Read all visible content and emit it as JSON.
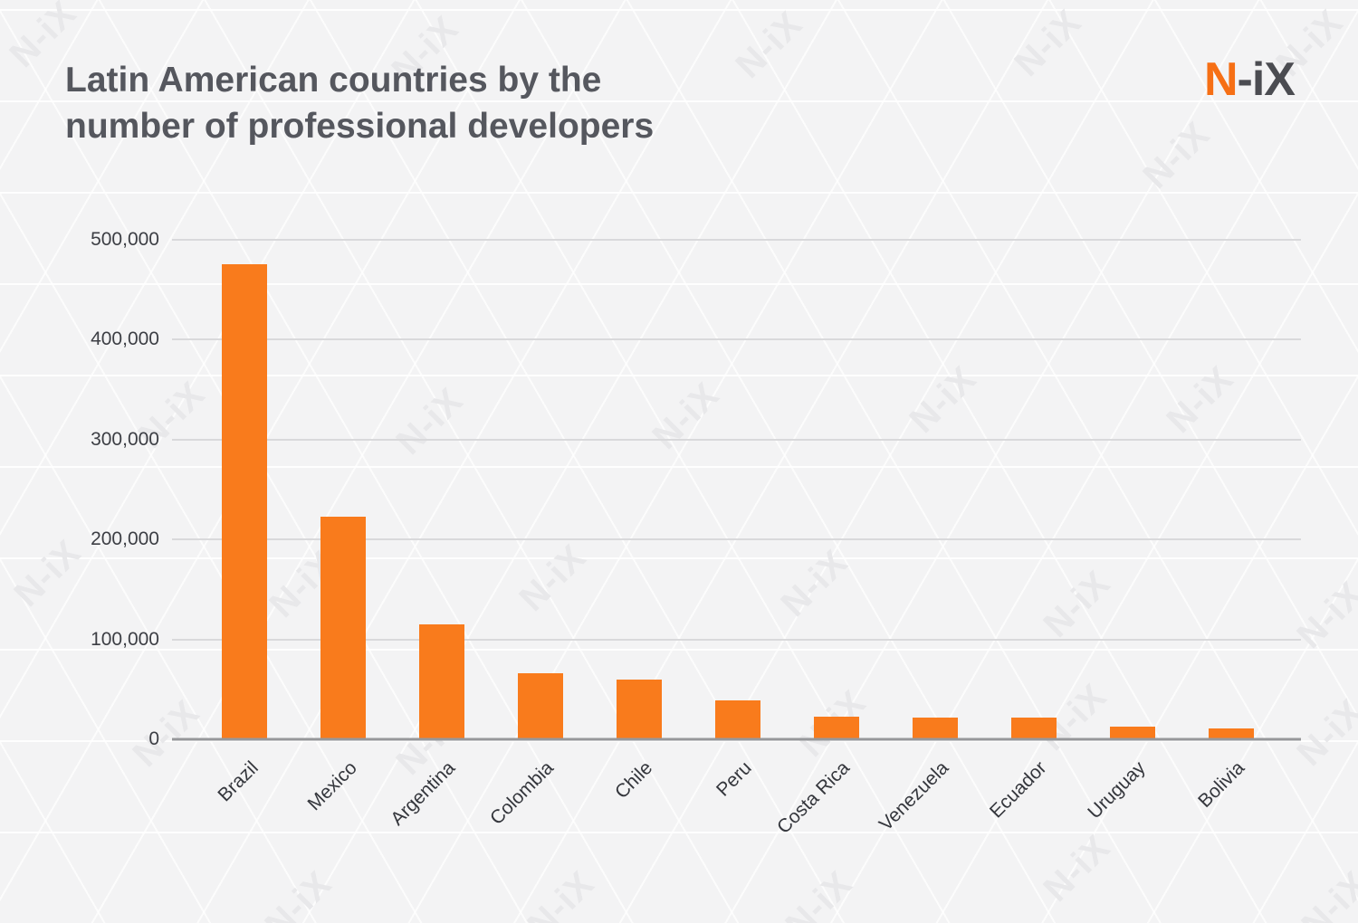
{
  "page": {
    "background": "#f3f3f4",
    "watermark_text": "N-iX"
  },
  "header": {
    "title_line1": "Latin American countries by the",
    "title_line2": "number of professional developers",
    "logo_orange_part": "N",
    "logo_gray_part": "-iX"
  },
  "colors": {
    "bar": "#f97b1c",
    "logo_orange": "#f66f15",
    "logo_gray": "#4b4c51",
    "title_text": "#55575e",
    "gridline": "#d9d9db",
    "axis_line": "#96979a"
  },
  "chart_data": {
    "type": "bar",
    "title": "Latin American countries by the number of professional developers",
    "categories": [
      "Brazil",
      "Mexico",
      "Argentina",
      "Colombia",
      "Chile",
      "Peru",
      "Costa Rica",
      "Venezuela",
      "Ecuador",
      "Uruguay",
      "Bolivia"
    ],
    "values": [
      476000,
      223000,
      115000,
      66000,
      60000,
      39000,
      23000,
      22000,
      22000,
      13000,
      11000
    ],
    "xlabel": "",
    "ylabel": "",
    "ylim": [
      0,
      500000
    ],
    "ytick_step": 100000,
    "ytick_labels": [
      "0",
      "100,000",
      "200,000",
      "300,000",
      "400,000",
      "500,000"
    ],
    "grid": true,
    "legend": false,
    "bar_color": "#f97b1c",
    "xlabel_rotation_deg": -45
  }
}
